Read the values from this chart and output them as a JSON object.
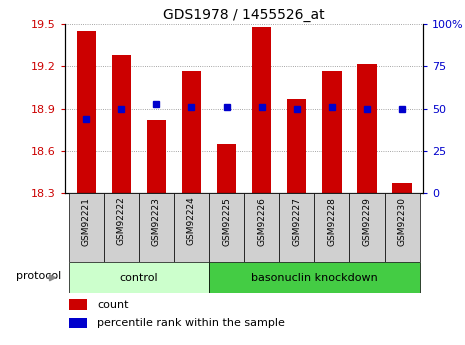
{
  "title": "GDS1978 / 1455526_at",
  "samples": [
    "GSM92221",
    "GSM92222",
    "GSM92223",
    "GSM92224",
    "GSM92225",
    "GSM92226",
    "GSM92227",
    "GSM92228",
    "GSM92229",
    "GSM92230"
  ],
  "counts": [
    19.45,
    19.28,
    18.82,
    19.17,
    18.65,
    19.48,
    18.97,
    19.17,
    19.22,
    18.37
  ],
  "percentiles": [
    44,
    50,
    53,
    51,
    51,
    51,
    50,
    51,
    50,
    50
  ],
  "ylim_left": [
    18.3,
    19.5
  ],
  "ylim_right": [
    0,
    100
  ],
  "yticks_left": [
    18.3,
    18.6,
    18.9,
    19.2,
    19.5
  ],
  "yticks_right": [
    0,
    25,
    50,
    75,
    100
  ],
  "bar_color": "#cc0000",
  "dot_color": "#0000cc",
  "groups": [
    {
      "label": "control",
      "start": 0,
      "end": 3,
      "color": "#ccffcc"
    },
    {
      "label": "basonuclin knockdown",
      "start": 4,
      "end": 9,
      "color": "#44cc44"
    }
  ],
  "protocol_label": "protocol",
  "legend_count_label": "count",
  "legend_percentile_label": "percentile rank within the sample",
  "grid_color": "#888888",
  "tick_label_color_left": "#cc0000",
  "tick_label_color_right": "#0000cc",
  "sample_box_color": "#d0d0d0",
  "fig_width": 4.65,
  "fig_height": 3.45,
  "dpi": 100
}
